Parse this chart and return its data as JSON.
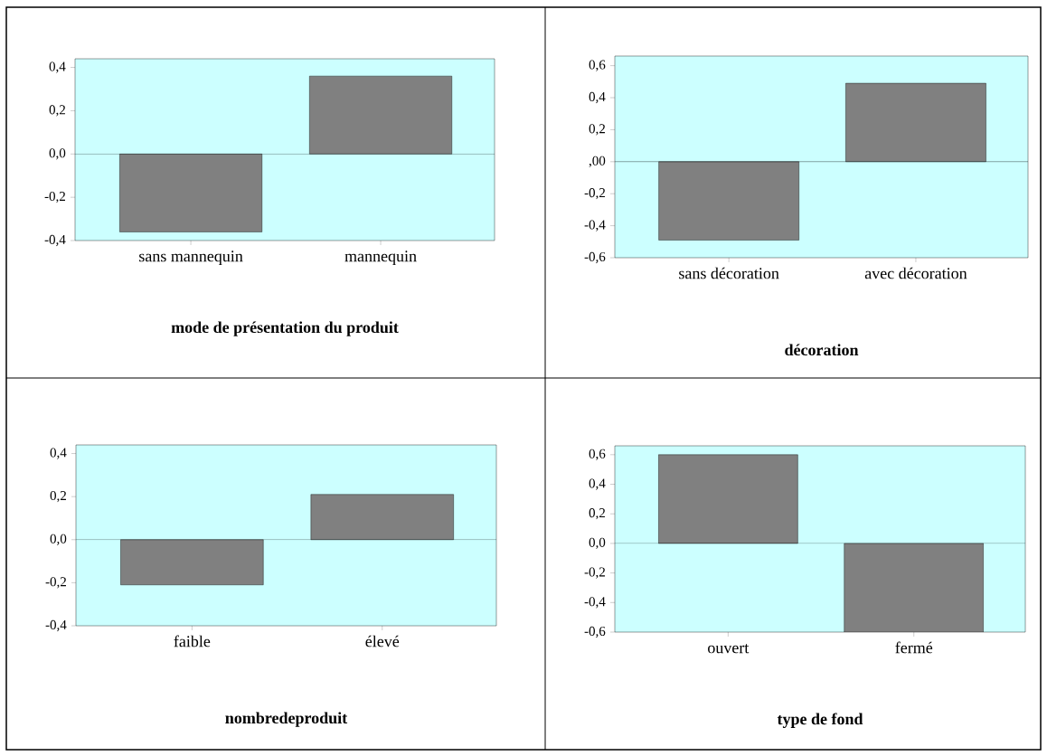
{
  "chart_data": [
    {
      "type": "bar",
      "categories": [
        "sans mannequin",
        "mannequin"
      ],
      "values": [
        -0.36,
        0.36
      ],
      "color": "#808080",
      "xlabel": "mode de présentation du produit",
      "ylim": [
        -0.4,
        0.44
      ],
      "yticks": [
        {
          "value": -0.4,
          "label": "-0,4"
        },
        {
          "value": -0.2,
          "label": "-0,2"
        },
        {
          "value": 0,
          "label": "0,0"
        },
        {
          "value": 0.2,
          "label": "0,2"
        },
        {
          "value": 0.4,
          "label": "0,4"
        }
      ],
      "ref_lines": [
        {
          "axis": "y",
          "value": 0,
          "color": "#000000"
        }
      ]
    },
    {
      "type": "bar",
      "categories": [
        "sans décoration",
        "avec décoration"
      ],
      "values": [
        -0.49,
        0.49
      ],
      "color": "#808080",
      "xlabel": "décoration",
      "ylim": [
        -0.6,
        0.66
      ],
      "yticks": [
        {
          "value": -0.6,
          "label": "-0,6"
        },
        {
          "value": -0.4,
          "label": "-0,4"
        },
        {
          "value": -0.2,
          "label": "-0,2"
        },
        {
          "value": 0,
          "label": ",00"
        },
        {
          "value": 0.2,
          "label": "0,2"
        },
        {
          "value": 0.4,
          "label": "0,4"
        },
        {
          "value": 0.6,
          "label": "0,6"
        }
      ],
      "ref_lines": [
        {
          "axis": "y",
          "value": 0,
          "color": "#000000"
        }
      ]
    },
    {
      "type": "bar",
      "categories": [
        "faible",
        "élevé"
      ],
      "values": [
        -0.21,
        0.21
      ],
      "color": "#808080",
      "xlabel": "nombredeproduit",
      "ylim": [
        -0.4,
        0.44
      ],
      "yticks": [
        {
          "value": -0.4,
          "label": "-0,4"
        },
        {
          "value": -0.2,
          "label": "-0,2"
        },
        {
          "value": 0,
          "label": "0,0"
        },
        {
          "value": 0.2,
          "label": "0,2"
        },
        {
          "value": 0.4,
          "label": "0,4"
        }
      ],
      "ref_lines": [
        {
          "axis": "y",
          "value": 0,
          "color": "#000000"
        }
      ]
    },
    {
      "type": "bar",
      "categories": [
        "ouvert",
        "fermé"
      ],
      "values": [
        0.6,
        -0.6
      ],
      "color": "#808080",
      "xlabel": "type de fond",
      "ylim": [
        -0.6,
        0.66
      ],
      "yticks": [
        {
          "value": -0.6,
          "label": "-0,6"
        },
        {
          "value": -0.4,
          "label": "-0,4"
        },
        {
          "value": -0.2,
          "label": "-0,2"
        },
        {
          "value": 0,
          "label": "0,0"
        },
        {
          "value": 0.2,
          "label": "0,2"
        },
        {
          "value": 0.4,
          "label": "0,4"
        },
        {
          "value": 0.6,
          "label": "0,6"
        }
      ],
      "ref_lines": [
        {
          "axis": "y",
          "value": 0,
          "color": "#000000"
        }
      ]
    }
  ]
}
